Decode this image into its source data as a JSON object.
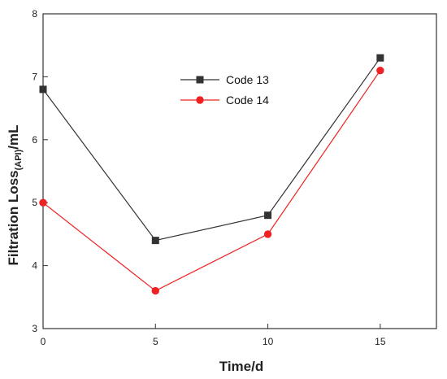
{
  "chart_data": {
    "type": "line",
    "title": "",
    "xlabel": "Time/d",
    "ylabel_main": "Filtration Loss",
    "ylabel_sub": "(API)",
    "ylabel_unit": "/mL",
    "xlim": [
      0,
      17.5
    ],
    "ylim": [
      3,
      8
    ],
    "xticks": [
      0,
      5,
      10,
      15
    ],
    "yticks": [
      3,
      4,
      5,
      6,
      7,
      8
    ],
    "grid": false,
    "legend_position": "upper-center",
    "x": [
      0,
      5,
      10,
      15
    ],
    "series": [
      {
        "name": "Code 13",
        "values": [
          6.8,
          4.4,
          4.8,
          7.3
        ],
        "color": "#333333",
        "marker": "square"
      },
      {
        "name": "Code 14",
        "values": [
          5.0,
          3.6,
          4.5,
          7.1
        ],
        "color": "#ee2222",
        "marker": "circle"
      }
    ]
  }
}
